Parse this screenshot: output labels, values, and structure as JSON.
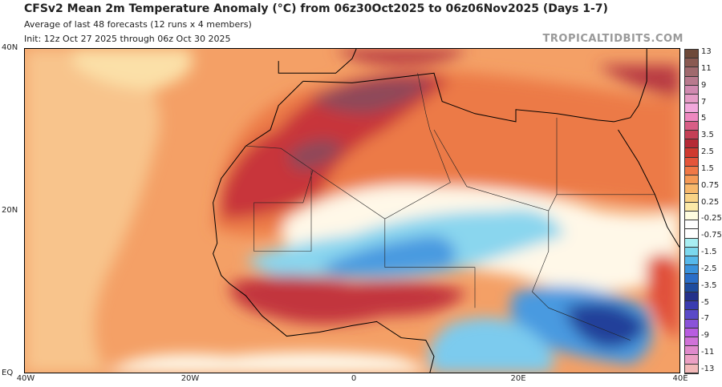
{
  "header": {
    "title": "CFSv2 Mean 2m Temperature Anomaly (°C) from 06z30Oct2025 to 06z06Nov2025 (Days 1-7)",
    "subtitle": "Average of last 48 forecasts (12 runs x 4 members)",
    "init": "Init: 12z Oct 27 2025 through 06z Oct 30 2025",
    "brand": "TROPICALTIDBITS.COM"
  },
  "axes": {
    "lat_labels": [
      "40N",
      "20N",
      "EQ"
    ],
    "lon_labels": [
      "40W",
      "20W",
      "0",
      "20E",
      "40E"
    ]
  },
  "colorbar": {
    "labels": [
      "13",
      "11",
      "9",
      "7",
      "5",
      "3.5",
      "2.5",
      "1.5",
      "0.75",
      "0.25",
      "-0.25",
      "-0.75",
      "-1.5",
      "-2.5",
      "-3.5",
      "-5",
      "-7",
      "-9",
      "-11",
      "-13"
    ],
    "colors": [
      "#6e4a3a",
      "#8a5a52",
      "#a06a6e",
      "#b87a8e",
      "#d08ab0",
      "#e59cc6",
      "#f2a8dc",
      "#ee88c0",
      "#d85e86",
      "#c44056",
      "#b52a36",
      "#cf3a30",
      "#e4553a",
      "#f07846",
      "#f59a56",
      "#f7b86c",
      "#f9d386",
      "#fbe9a8",
      "#fffde0",
      "#ffffff",
      "#ffffff",
      "#a8eef2",
      "#7cd8ee",
      "#56b8ea",
      "#3a92dc",
      "#2a6ec8",
      "#1e4c9e",
      "#24318a",
      "#3a3cb0",
      "#5a4ac8",
      "#8a52d8",
      "#b85ce0",
      "#d072d8",
      "#e08acc",
      "#eca0c4",
      "#f2b8b8"
    ]
  }
}
